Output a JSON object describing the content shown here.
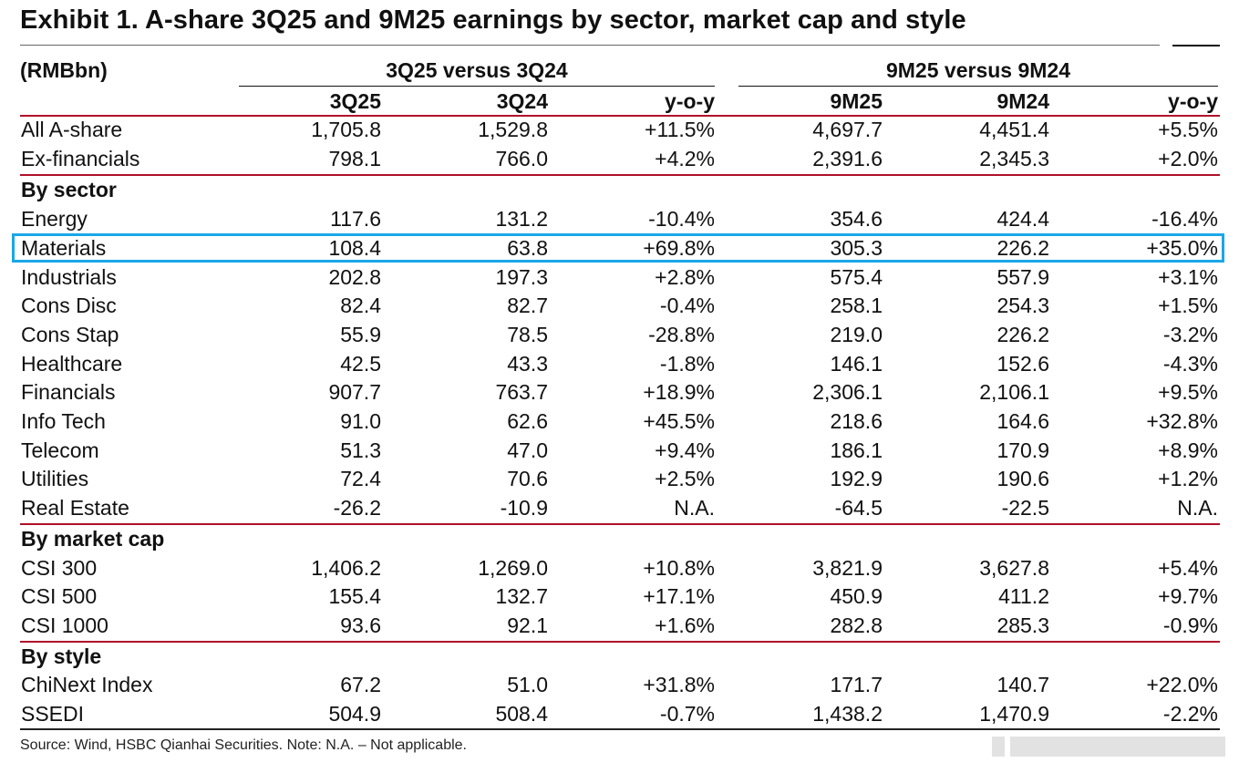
{
  "title": "Exhibit 1. A-share 3Q25 and 9M25 earnings by sector, market cap and style",
  "unit_label": "(RMBbn)",
  "group_headers": [
    "3Q25 versus 3Q24",
    "9M25 versus 9M24"
  ],
  "columns": [
    "3Q25",
    "3Q24",
    "y-o-y",
    "9M25",
    "9M24",
    "y-o-y"
  ],
  "summary_rows": [
    {
      "label": "All A-share",
      "values": [
        "1,705.8",
        "1,529.8",
        "+11.5%",
        "4,697.7",
        "4,451.4",
        "+5.5%"
      ]
    },
    {
      "label": "Ex-financials",
      "values": [
        "798.1",
        "766.0",
        "+4.2%",
        "2,391.6",
        "2,345.3",
        "+2.0%"
      ]
    }
  ],
  "sections": [
    {
      "title": "By sector",
      "rows": [
        {
          "label": "Energy",
          "values": [
            "117.6",
            "131.2",
            "-10.4%",
            "354.6",
            "424.4",
            "-16.4%"
          ]
        },
        {
          "label": "Materials",
          "values": [
            "108.4",
            "63.8",
            "+69.8%",
            "305.3",
            "226.2",
            "+35.0%"
          ]
        },
        {
          "label": "Industrials",
          "values": [
            "202.8",
            "197.3",
            "+2.8%",
            "575.4",
            "557.9",
            "+3.1%"
          ]
        },
        {
          "label": "Cons Disc",
          "values": [
            "82.4",
            "82.7",
            "-0.4%",
            "258.1",
            "254.3",
            "+1.5%"
          ]
        },
        {
          "label": "Cons Stap",
          "values": [
            "55.9",
            "78.5",
            "-28.8%",
            "219.0",
            "226.2",
            "-3.2%"
          ]
        },
        {
          "label": "Healthcare",
          "values": [
            "42.5",
            "43.3",
            "-1.8%",
            "146.1",
            "152.6",
            "-4.3%"
          ]
        },
        {
          "label": "Financials",
          "values": [
            "907.7",
            "763.7",
            "+18.9%",
            "2,306.1",
            "2,106.1",
            "+9.5%"
          ]
        },
        {
          "label": "Info Tech",
          "values": [
            "91.0",
            "62.6",
            "+45.5%",
            "218.6",
            "164.6",
            "+32.8%"
          ]
        },
        {
          "label": "Telecom",
          "values": [
            "51.3",
            "47.0",
            "+9.4%",
            "186.1",
            "170.9",
            "+8.9%"
          ]
        },
        {
          "label": "Utilities",
          "values": [
            "72.4",
            "70.6",
            "+2.5%",
            "192.9",
            "190.6",
            "+1.2%"
          ]
        },
        {
          "label": "Real Estate",
          "values": [
            "-26.2",
            "-10.9",
            "N.A.",
            "-64.5",
            "-22.5",
            "N.A."
          ]
        }
      ]
    },
    {
      "title": "By market cap",
      "rows": [
        {
          "label": "CSI 300",
          "values": [
            "1,406.2",
            "1,269.0",
            "+10.8%",
            "3,821.9",
            "3,627.8",
            "+5.4%"
          ]
        },
        {
          "label": "CSI 500",
          "values": [
            "155.4",
            "132.7",
            "+17.1%",
            "450.9",
            "411.2",
            "+9.7%"
          ]
        },
        {
          "label": "CSI 1000",
          "values": [
            "93.6",
            "92.1",
            "+1.6%",
            "282.8",
            "285.3",
            "-0.9%"
          ]
        }
      ]
    },
    {
      "title": "By style",
      "rows": [
        {
          "label": "ChiNext Index",
          "values": [
            "67.2",
            "51.0",
            "+31.8%",
            "171.7",
            "140.7",
            "+22.0%"
          ]
        },
        {
          "label": "SSEDI",
          "values": [
            "504.9",
            "508.4",
            "-0.7%",
            "1,438.2",
            "1,470.9",
            "-2.2%"
          ]
        }
      ]
    }
  ],
  "highlighted_row": "Materials",
  "highlight_color": "#1aa7e6",
  "rule_color": "#b0102a",
  "source": "Source: Wind, HSBC Qianhai Securities. Note: N.A. – Not applicable."
}
